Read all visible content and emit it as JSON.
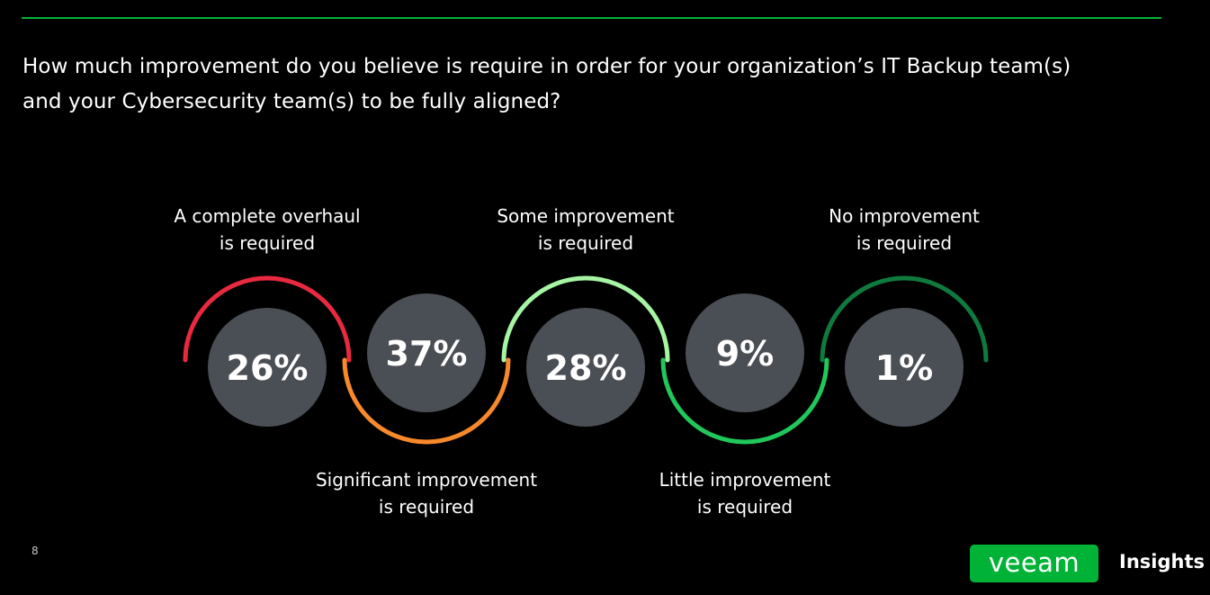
{
  "question": "How much improvement do you believe is require in order for your organization’s IT Backup team(s) and your Cybersecurity team(s) to be fully aligned?",
  "page_number": "8",
  "brand": {
    "logo": "veeam",
    "suffix": "Insights"
  },
  "colors": {
    "accent": "#00b336",
    "bubble": "#4a4e55",
    "background": "#000000"
  },
  "chart_data": {
    "type": "bar",
    "categories": [
      "A complete overhaul is required",
      "Significant improvement is required",
      "Some improvement is required",
      "Little improvement is required",
      "No improvement is required"
    ],
    "values": [
      26,
      37,
      28,
      9,
      1
    ],
    "unit": "%",
    "value_labels": [
      "26%",
      "37%",
      "28%",
      "9%",
      "1%"
    ],
    "label_lines": [
      [
        "A complete overhaul",
        "is required"
      ],
      [
        "Significant improvement",
        "is required"
      ],
      [
        "Some improvement",
        "is required"
      ],
      [
        "Little improvement",
        "is required"
      ],
      [
        "No improvement",
        "is required"
      ]
    ],
    "arc_colors": [
      "#e8293f",
      "#f7892b",
      "#a6f5a3",
      "#20c75a",
      "#0e7a3d"
    ]
  }
}
